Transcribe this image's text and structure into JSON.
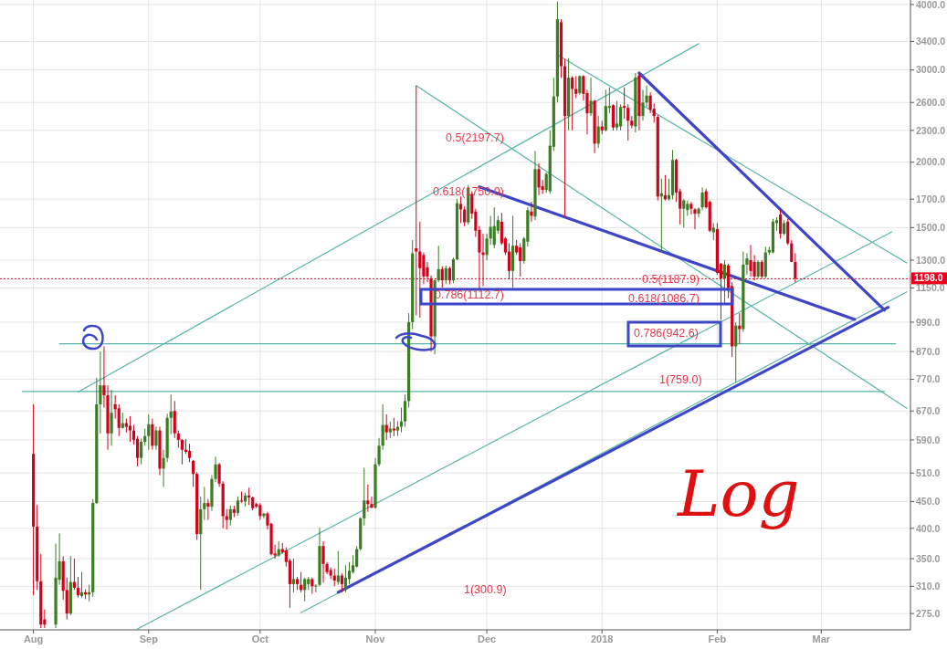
{
  "chart_data": {
    "type": "candlestick",
    "log": true,
    "grid": true,
    "xlim": [
      "2017-07-23",
      "2018-03-25"
    ],
    "xticks": [
      {
        "value": "2017-08-01",
        "label": "Aug"
      },
      {
        "value": "2017-09-01",
        "label": "Sep"
      },
      {
        "value": "2017-10-01",
        "label": "Oct"
      },
      {
        "value": "2017-11-01",
        "label": "Nov"
      },
      {
        "value": "2017-12-01",
        "label": "Dec"
      },
      {
        "value": "2018-01-01",
        "label": "2018"
      },
      {
        "value": "2018-02-01",
        "label": "Feb"
      },
      {
        "value": "2018-03-01",
        "label": "Mar"
      }
    ],
    "ylim": [
      256,
      4080
    ],
    "yticks": [
      {
        "value": 275,
        "label": "275.0"
      },
      {
        "value": 310,
        "label": "310.0"
      },
      {
        "value": 350,
        "label": "350.0"
      },
      {
        "value": 400,
        "label": "400.0"
      },
      {
        "value": 450,
        "label": "450.0"
      },
      {
        "value": 510,
        "label": "510.0"
      },
      {
        "value": 590,
        "label": "590.0"
      },
      {
        "value": 670,
        "label": "670.0"
      },
      {
        "value": 770,
        "label": "770.0"
      },
      {
        "value": 870,
        "label": "870.0"
      },
      {
        "value": 990,
        "label": "990.0"
      },
      {
        "value": 1150,
        "label": "1150.0"
      },
      {
        "value": 1300,
        "label": "1300.0"
      },
      {
        "value": 1500,
        "label": "1500.0"
      },
      {
        "value": 1700,
        "label": "1700.0"
      },
      {
        "value": 2000,
        "label": "2000.0"
      },
      {
        "value": 2300,
        "label": "2300.0"
      },
      {
        "value": 2600,
        "label": "2600.0"
      },
      {
        "value": 3000,
        "label": "3000.0"
      },
      {
        "value": 3400,
        "label": "3400.0"
      },
      {
        "value": 4000,
        "label": "4000.0"
      }
    ],
    "x": [
      "2017-08-01",
      "2017-08-02",
      "2017-08-03",
      "2017-08-04",
      "2017-08-07",
      "2017-08-08",
      "2017-08-09",
      "2017-08-10",
      "2017-08-11",
      "2017-08-12",
      "2017-08-13",
      "2017-08-14",
      "2017-08-15",
      "2017-08-16",
      "2017-08-17",
      "2017-08-18",
      "2017-08-19",
      "2017-08-20",
      "2017-08-21",
      "2017-08-22",
      "2017-08-23",
      "2017-08-24",
      "2017-08-25",
      "2017-08-26",
      "2017-08-27",
      "2017-08-28",
      "2017-08-29",
      "2017-08-30",
      "2017-08-31",
      "2017-09-01",
      "2017-09-02",
      "2017-09-03",
      "2017-09-04",
      "2017-09-05",
      "2017-09-06",
      "2017-09-07",
      "2017-09-08",
      "2017-09-09",
      "2017-09-10",
      "2017-09-11",
      "2017-09-12",
      "2017-09-13",
      "2017-09-14",
      "2017-09-15",
      "2017-09-16",
      "2017-09-17",
      "2017-09-18",
      "2017-09-19",
      "2017-09-20",
      "2017-09-21",
      "2017-09-22",
      "2017-09-23",
      "2017-09-24",
      "2017-09-25",
      "2017-09-26",
      "2017-09-27",
      "2017-09-28",
      "2017-09-29",
      "2017-09-30",
      "2017-10-01",
      "2017-10-02",
      "2017-10-03",
      "2017-10-04",
      "2017-10-05",
      "2017-10-06",
      "2017-10-07",
      "2017-10-08",
      "2017-10-09",
      "2017-10-10",
      "2017-10-11",
      "2017-10-12",
      "2017-10-13",
      "2017-10-14",
      "2017-10-15",
      "2017-10-16",
      "2017-10-17",
      "2017-10-18",
      "2017-10-19",
      "2017-10-20",
      "2017-10-21",
      "2017-10-22",
      "2017-10-23",
      "2017-10-24",
      "2017-10-25",
      "2017-10-26",
      "2017-10-27",
      "2017-10-28",
      "2017-10-29",
      "2017-10-30",
      "2017-10-31",
      "2017-11-01",
      "2017-11-02",
      "2017-11-03",
      "2017-11-04",
      "2017-11-05",
      "2017-11-06",
      "2017-11-07",
      "2017-11-08",
      "2017-11-09",
      "2017-11-10",
      "2017-11-11",
      "2017-11-12",
      "2017-11-13",
      "2017-11-14",
      "2017-11-15",
      "2017-11-16",
      "2017-11-17",
      "2017-11-18",
      "2017-11-19",
      "2017-11-20",
      "2017-11-21",
      "2017-11-22",
      "2017-11-23",
      "2017-11-24",
      "2017-11-25",
      "2017-11-26",
      "2017-11-27",
      "2017-11-28",
      "2017-11-29",
      "2017-11-30",
      "2017-12-01",
      "2017-12-02",
      "2017-12-03",
      "2017-12-04",
      "2017-12-05",
      "2017-12-06",
      "2017-12-07",
      "2017-12-08",
      "2017-12-09",
      "2017-12-10",
      "2017-12-11",
      "2017-12-12",
      "2017-12-13",
      "2017-12-14",
      "2017-12-15",
      "2017-12-16",
      "2017-12-17",
      "2017-12-18",
      "2017-12-19",
      "2017-12-20",
      "2017-12-21",
      "2017-12-22",
      "2017-12-23",
      "2017-12-24",
      "2017-12-25",
      "2017-12-26",
      "2017-12-27",
      "2017-12-28",
      "2017-12-29",
      "2017-12-30",
      "2017-12-31",
      "2018-01-01",
      "2018-01-02",
      "2018-01-03",
      "2018-01-04",
      "2018-01-05",
      "2018-01-06",
      "2018-01-07",
      "2018-01-08",
      "2018-01-09",
      "2018-01-10",
      "2018-01-11",
      "2018-01-12",
      "2018-01-13",
      "2018-01-14",
      "2018-01-15",
      "2018-01-16",
      "2018-01-17",
      "2018-01-18",
      "2018-01-19",
      "2018-01-20",
      "2018-01-21",
      "2018-01-22",
      "2018-01-23",
      "2018-01-24",
      "2018-01-25",
      "2018-01-26",
      "2018-01-27",
      "2018-01-28",
      "2018-01-29",
      "2018-01-30",
      "2018-01-31",
      "2018-02-01",
      "2018-02-02",
      "2018-02-03",
      "2018-02-04",
      "2018-02-05",
      "2018-02-06",
      "2018-02-07",
      "2018-02-08",
      "2018-02-09",
      "2018-02-10",
      "2018-02-11",
      "2018-02-12",
      "2018-02-13",
      "2018-02-14",
      "2018-02-15",
      "2018-02-16",
      "2018-02-17",
      "2018-02-18",
      "2018-02-19",
      "2018-02-20",
      "2018-02-21",
      "2018-02-22"
    ],
    "ohlc": [
      [
        555,
        690,
        298,
        403
      ],
      [
        403,
        443,
        305,
        317
      ],
      [
        317,
        357,
        258,
        262
      ],
      [
        268,
        280,
        258,
        262
      ],
      [
        262,
        374,
        258,
        322
      ],
      [
        319,
        391,
        312,
        346
      ],
      [
        346,
        354,
        292,
        304
      ],
      [
        305,
        322,
        268,
        275
      ],
      [
        275,
        354,
        273,
        316
      ],
      [
        316,
        350,
        305,
        308
      ],
      [
        308,
        323,
        295,
        298
      ],
      [
        297,
        330,
        295,
        302
      ],
      [
        302,
        306,
        293,
        299
      ],
      [
        299,
        312,
        290,
        302
      ],
      [
        302,
        455,
        296,
        447
      ],
      [
        447,
        775,
        445,
        690
      ],
      [
        690,
        870,
        607,
        750
      ],
      [
        750,
        890,
        680,
        718
      ],
      [
        718,
        750,
        565,
        607
      ],
      [
        607,
        735,
        575,
        665
      ],
      [
        690,
        718,
        648,
        675
      ],
      [
        678,
        690,
        600,
        622
      ],
      [
        622,
        665,
        620,
        635
      ],
      [
        635,
        648,
        610,
        625
      ],
      [
        628,
        655,
        585,
        615
      ],
      [
        615,
        630,
        578,
        590
      ],
      [
        593,
        600,
        525,
        545
      ],
      [
        545,
        593,
        530,
        585
      ],
      [
        585,
        620,
        575,
        600
      ],
      [
        600,
        660,
        565,
        632
      ],
      [
        632,
        648,
        565,
        575
      ],
      [
        575,
        625,
        565,
        615
      ],
      [
        615,
        625,
        505,
        520
      ],
      [
        520,
        565,
        480,
        545
      ],
      [
        545,
        662,
        535,
        650
      ],
      [
        650,
        720,
        605,
        668
      ],
      [
        670,
        700,
        595,
        607
      ],
      [
        607,
        615,
        570,
        590
      ],
      [
        590,
        592,
        530,
        565
      ],
      [
        565,
        592,
        555,
        560
      ],
      [
        562,
        580,
        535,
        545
      ],
      [
        538,
        540,
        480,
        508
      ],
      [
        508,
        512,
        380,
        390
      ],
      [
        390,
        460,
        305,
        435
      ],
      [
        435,
        480,
        415,
        447
      ],
      [
        447,
        455,
        415,
        440
      ],
      [
        440,
        505,
        432,
        497
      ],
      [
        497,
        548,
        490,
        530
      ],
      [
        530,
        533,
        480,
        487
      ],
      [
        487,
        492,
        400,
        422
      ],
      [
        422,
        435,
        398,
        415
      ],
      [
        415,
        442,
        405,
        435
      ],
      [
        435,
        442,
        420,
        428
      ],
      [
        428,
        460,
        423,
        452
      ],
      [
        452,
        470,
        448,
        450
      ],
      [
        450,
        468,
        440,
        462
      ],
      [
        462,
        478,
        443,
        458
      ],
      [
        458,
        460,
        433,
        437
      ],
      [
        445,
        448,
        437,
        440
      ],
      [
        443,
        447,
        415,
        422
      ],
      [
        422,
        428,
        418,
        427
      ],
      [
        427,
        430,
        398,
        405
      ],
      [
        408,
        410,
        355,
        357
      ],
      [
        358,
        372,
        350,
        355
      ],
      [
        355,
        378,
        353,
        365
      ],
      [
        365,
        375,
        358,
        360
      ],
      [
        363,
        368,
        338,
        345
      ],
      [
        347,
        350,
        282,
        313
      ],
      [
        313,
        350,
        302,
        320
      ],
      [
        320,
        323,
        305,
        313
      ],
      [
        312,
        330,
        302,
        305
      ],
      [
        305,
        322,
        290,
        320
      ],
      [
        313,
        323,
        305,
        320
      ],
      [
        320,
        322,
        300,
        310
      ],
      [
        310,
        313,
        302,
        311
      ],
      [
        312,
        401,
        310,
        370
      ],
      [
        370,
        378,
        315,
        342
      ],
      [
        342,
        345,
        327,
        330
      ],
      [
        333,
        337,
        320,
        325
      ],
      [
        325,
        335,
        310,
        318
      ],
      [
        316,
        362,
        312,
        325
      ],
      [
        325,
        328,
        302,
        313
      ],
      [
        305,
        340,
        302,
        322
      ],
      [
        320,
        345,
        313,
        332
      ],
      [
        330,
        355,
        328,
        340
      ],
      [
        338,
        370,
        337,
        365
      ],
      [
        365,
        420,
        363,
        418
      ],
      [
        418,
        522,
        405,
        452
      ],
      [
        452,
        485,
        430,
        445
      ],
      [
        445,
        460,
        437,
        438
      ],
      [
        438,
        545,
        436,
        530
      ],
      [
        530,
        595,
        525,
        575
      ],
      [
        575,
        690,
        565,
        630
      ],
      [
        630,
        660,
        590,
        610
      ],
      [
        610,
        640,
        595,
        620
      ],
      [
        620,
        650,
        600,
        615
      ],
      [
        615,
        640,
        600,
        625
      ],
      [
        625,
        680,
        610,
        640
      ],
      [
        640,
        720,
        625,
        700
      ],
      [
        700,
        1030,
        680,
        990
      ],
      [
        990,
        1420,
        960,
        1340
      ],
      [
        1370,
        2800,
        1020,
        1350
      ],
      [
        1350,
        1540,
        1010,
        1255
      ],
      [
        1330,
        1345,
        1170,
        1210
      ],
      [
        1260,
        1290,
        1180,
        1210
      ],
      [
        1200,
        1215,
        870,
        930
      ],
      [
        930,
        1195,
        860,
        1190
      ],
      [
        1190,
        1385,
        1180,
        1250
      ],
      [
        1250,
        1265,
        1150,
        1190
      ],
      [
        1190,
        1270,
        1170,
        1255
      ],
      [
        1255,
        1265,
        1170,
        1190
      ],
      [
        1190,
        1315,
        1175,
        1305
      ],
      [
        1305,
        1700,
        1300,
        1670
      ],
      [
        1665,
        1720,
        1530,
        1625
      ],
      [
        1625,
        1650,
        1510,
        1535
      ],
      [
        1535,
        1810,
        1520,
        1785
      ],
      [
        1740,
        1760,
        1560,
        1595
      ],
      [
        1610,
        1630,
        1440,
        1480
      ],
      [
        1485,
        1510,
        1140,
        1345
      ],
      [
        1345,
        1460,
        1160,
        1330
      ],
      [
        1330,
        1460,
        1300,
        1430
      ],
      [
        1430,
        1580,
        1390,
        1505
      ],
      [
        1390,
        1640,
        1370,
        1510
      ],
      [
        1480,
        1580,
        1460,
        1550
      ],
      [
        1540,
        1600,
        1390,
        1400
      ],
      [
        1430,
        1440,
        1330,
        1345
      ],
      [
        1350,
        1400,
        1200,
        1240
      ],
      [
        1240,
        1580,
        1150,
        1385
      ],
      [
        1385,
        1420,
        1330,
        1345
      ],
      [
        1375,
        1400,
        1210,
        1295
      ],
      [
        1295,
        1440,
        1280,
        1430
      ],
      [
        1410,
        1640,
        1380,
        1620
      ],
      [
        1610,
        1680,
        1540,
        1580
      ],
      [
        1575,
        2100,
        1550,
        1940
      ],
      [
        1940,
        1990,
        1730,
        1790
      ],
      [
        1800,
        1850,
        1740,
        1770
      ],
      [
        1770,
        1910,
        1750,
        1900
      ],
      [
        1760,
        2300,
        1740,
        2150
      ],
      [
        2140,
        2900,
        2100,
        2670
      ],
      [
        2670,
        4050,
        2600,
        3750
      ],
      [
        3700,
        3750,
        2900,
        3050
      ],
      [
        3050,
        3150,
        1570,
        2450
      ],
      [
        2450,
        3160,
        2300,
        2900
      ],
      [
        2900,
        2920,
        2300,
        2760
      ],
      [
        2760,
        2920,
        2650,
        2700
      ],
      [
        2710,
        2930,
        2690,
        2920
      ],
      [
        2920,
        2930,
        2620,
        2700
      ],
      [
        2710,
        2750,
        2260,
        2480
      ],
      [
        2480,
        2900,
        2450,
        2620
      ],
      [
        2620,
        2630,
        2080,
        2170
      ],
      [
        2170,
        2450,
        2130,
        2340
      ],
      [
        2340,
        2400,
        2260,
        2300
      ],
      [
        2300,
        2750,
        2290,
        2560
      ],
      [
        2540,
        2780,
        2480,
        2560
      ],
      [
        2570,
        2580,
        2300,
        2330
      ],
      [
        2330,
        2620,
        2300,
        2370
      ],
      [
        2340,
        2580,
        2300,
        2550
      ],
      [
        2560,
        2780,
        2420,
        2540
      ],
      [
        2540,
        2580,
        2200,
        2400
      ],
      [
        2400,
        2450,
        2320,
        2350
      ],
      [
        2340,
        2960,
        2280,
        2900
      ],
      [
        2930,
        2960,
        2300,
        2450
      ],
      [
        2450,
        2750,
        2400,
        2600
      ],
      [
        2600,
        2800,
        2550,
        2680
      ],
      [
        2680,
        2720,
        2480,
        2520
      ],
      [
        2530,
        2590,
        2380,
        2450
      ],
      [
        2440,
        2460,
        1690,
        1720
      ],
      [
        1720,
        1860,
        1350,
        1745
      ],
      [
        1730,
        1890,
        1690,
        1700
      ],
      [
        1700,
        1860,
        1690,
        1730
      ],
      [
        1730,
        2110,
        1700,
        2020
      ],
      [
        2020,
        2030,
        1680,
        1750
      ],
      [
        1760,
        1780,
        1520,
        1630
      ],
      [
        1630,
        1700,
        1500,
        1690
      ],
      [
        1620,
        1690,
        1580,
        1665
      ],
      [
        1665,
        1680,
        1590,
        1630
      ],
      [
        1625,
        1635,
        1490,
        1595
      ],
      [
        1595,
        1640,
        1570,
        1630
      ],
      [
        1640,
        1790,
        1620,
        1750
      ],
      [
        1760,
        1780,
        1630,
        1640
      ],
      [
        1680,
        1690,
        1470,
        1480
      ],
      [
        1470,
        1530,
        1420,
        1500
      ],
      [
        1490,
        1530,
        1220,
        1230
      ],
      [
        1280,
        1285,
        1000,
        1200
      ],
      [
        1200,
        1300,
        1070,
        1275
      ],
      [
        1270,
        1280,
        1100,
        1150
      ],
      [
        1160,
        1180,
        850,
        890
      ],
      [
        890,
        990,
        760,
        975
      ],
      [
        975,
        1030,
        900,
        960
      ],
      [
        960,
        1350,
        950,
        1275
      ],
      [
        1275,
        1340,
        1220,
        1310
      ],
      [
        1300,
        1390,
        1210,
        1240
      ],
      [
        1290,
        1330,
        1190,
        1210
      ],
      [
        1210,
        1300,
        1200,
        1290
      ],
      [
        1290,
        1300,
        1200,
        1210
      ],
      [
        1210,
        1380,
        1200,
        1345
      ],
      [
        1345,
        1380,
        1330,
        1360
      ],
      [
        1345,
        1560,
        1340,
        1540
      ],
      [
        1530,
        1570,
        1480,
        1550
      ],
      [
        1590,
        1625,
        1430,
        1460
      ],
      [
        1460,
        1550,
        1450,
        1530
      ],
      [
        1540,
        1560,
        1390,
        1400
      ],
      [
        1400,
        1420,
        1290,
        1290
      ],
      [
        1290,
        1340,
        1180,
        1198
      ]
    ],
    "series": [
      {
        "type": "line",
        "color": "#55b4a8",
        "x": [
          "2017-08-08",
          "2018-03-21"
        ],
        "values": [
          900,
          900
        ]
      },
      {
        "type": "line",
        "color": "#55b4a8",
        "x": [
          "2017-07-29",
          "2018-03-18"
        ],
        "values": [
          730,
          730
        ]
      },
      {
        "type": "line",
        "color": "#55b4a8",
        "x": [
          "2017-08-13",
          "2018-01-27"
        ],
        "values": [
          728,
          3367
        ]
      },
      {
        "type": "line",
        "color": "#55b4a8",
        "x": [
          "2017-08-29",
          "2018-03-20"
        ],
        "values": [
          257,
          1472
        ]
      },
      {
        "type": "line",
        "color": "#55b4a8",
        "x": [
          "2017-10-12",
          "2018-03-24"
        ],
        "values": [
          276,
          1131
        ]
      },
      {
        "type": "line",
        "color": "#55b4a8",
        "x": [
          "2017-11-12",
          "2018-03-24"
        ],
        "values": [
          2800,
          678
        ]
      },
      {
        "type": "line",
        "color": "#55b4a8",
        "x": [
          "2017-12-20",
          "2018-03-24"
        ],
        "values": [
          3206,
          1285
        ]
      },
      {
        "type": "line",
        "color": "#3d45c8",
        "x": [
          "2018-01-11",
          "2018-03-18"
        ],
        "values": [
          2960,
          1044
        ]
      },
      {
        "type": "line",
        "color": "#3d45c8",
        "x": [
          "2017-11-29",
          "2018-03-10"
        ],
        "values": [
          1794,
          1002
        ]
      },
      {
        "type": "line",
        "color": "#3d45c8",
        "x": [
          "2017-10-22",
          "2018-03-19"
        ],
        "values": [
          302,
          1057
        ]
      }
    ],
    "ref_lines": [
      {
        "axis": "y",
        "value": 1198,
        "label": "1198.0",
        "color": "#e8001c",
        "line_style": "dotted"
      }
    ],
    "annotations": [
      "0.5(2197.7)",
      "0.618(1750.0)",
      "0.786(1112.7)",
      "0.5(1187.9)",
      "0.618(1086.7)",
      "0.786(942.6)",
      "1(759.0)",
      "1(300.9)",
      "Log"
    ]
  }
}
